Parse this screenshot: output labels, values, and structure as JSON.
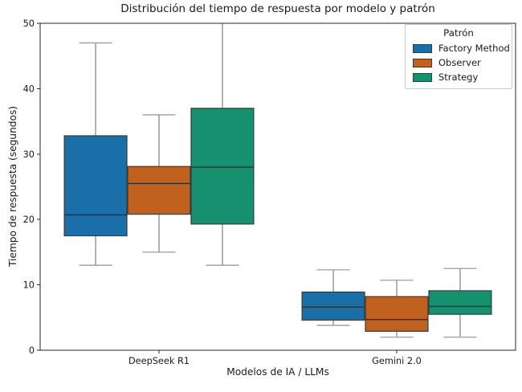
{
  "chart_data": {
    "type": "boxplot",
    "title": "Distribución del tiempo de respuesta por modelo y patrón",
    "xlabel": "Modelos de IA / LLMs",
    "ylabel": "Tiempo de respuesta (segundos)",
    "categories": [
      "DeepSeek R1",
      "Gemini 2.0"
    ],
    "ylim": [
      0,
      50
    ],
    "yticks": [
      0,
      10,
      20,
      30,
      40,
      50
    ],
    "grid": false,
    "legend": {
      "title": "Patrón",
      "position": "upper right",
      "entries": [
        "Factory Method",
        "Observer",
        "Strategy"
      ]
    },
    "series": [
      {
        "name": "Factory Method",
        "color": "#1b6fa8",
        "boxes": [
          {
            "category": "DeepSeek R1",
            "whisker_low": 13.0,
            "q1": 17.5,
            "median": 20.7,
            "q3": 32.8,
            "whisker_high": 47.0
          },
          {
            "category": "Gemini 2.0",
            "whisker_low": 3.8,
            "q1": 4.6,
            "median": 6.6,
            "q3": 8.9,
            "whisker_high": 12.3
          }
        ]
      },
      {
        "name": "Observer",
        "color": "#c0611f",
        "boxes": [
          {
            "category": "DeepSeek R1",
            "whisker_low": 15.0,
            "q1": 20.8,
            "median": 25.5,
            "q3": 28.1,
            "whisker_high": 36.0
          },
          {
            "category": "Gemini 2.0",
            "whisker_low": 2.0,
            "q1": 2.9,
            "median": 4.7,
            "q3": 8.2,
            "whisker_high": 10.7
          }
        ]
      },
      {
        "name": "Strategy",
        "color": "#16916f",
        "boxes": [
          {
            "category": "DeepSeek R1",
            "whisker_low": 13.0,
            "q1": 19.3,
            "median": 28.0,
            "q3": 37.0,
            "whisker_high": 50.6,
            "note": "top whisker clipped at axis limit 50"
          },
          {
            "category": "Gemini 2.0",
            "whisker_low": 2.0,
            "q1": 5.5,
            "median": 6.7,
            "q3": 9.1,
            "whisker_high": 12.5
          }
        ]
      }
    ],
    "styles": {
      "box_edge": "#3a3a3a",
      "median_line": "#303030",
      "whisker": "#8a8a8a",
      "cap": "#9c9c9c",
      "spine": "#262626",
      "background": "#ffffff"
    }
  }
}
